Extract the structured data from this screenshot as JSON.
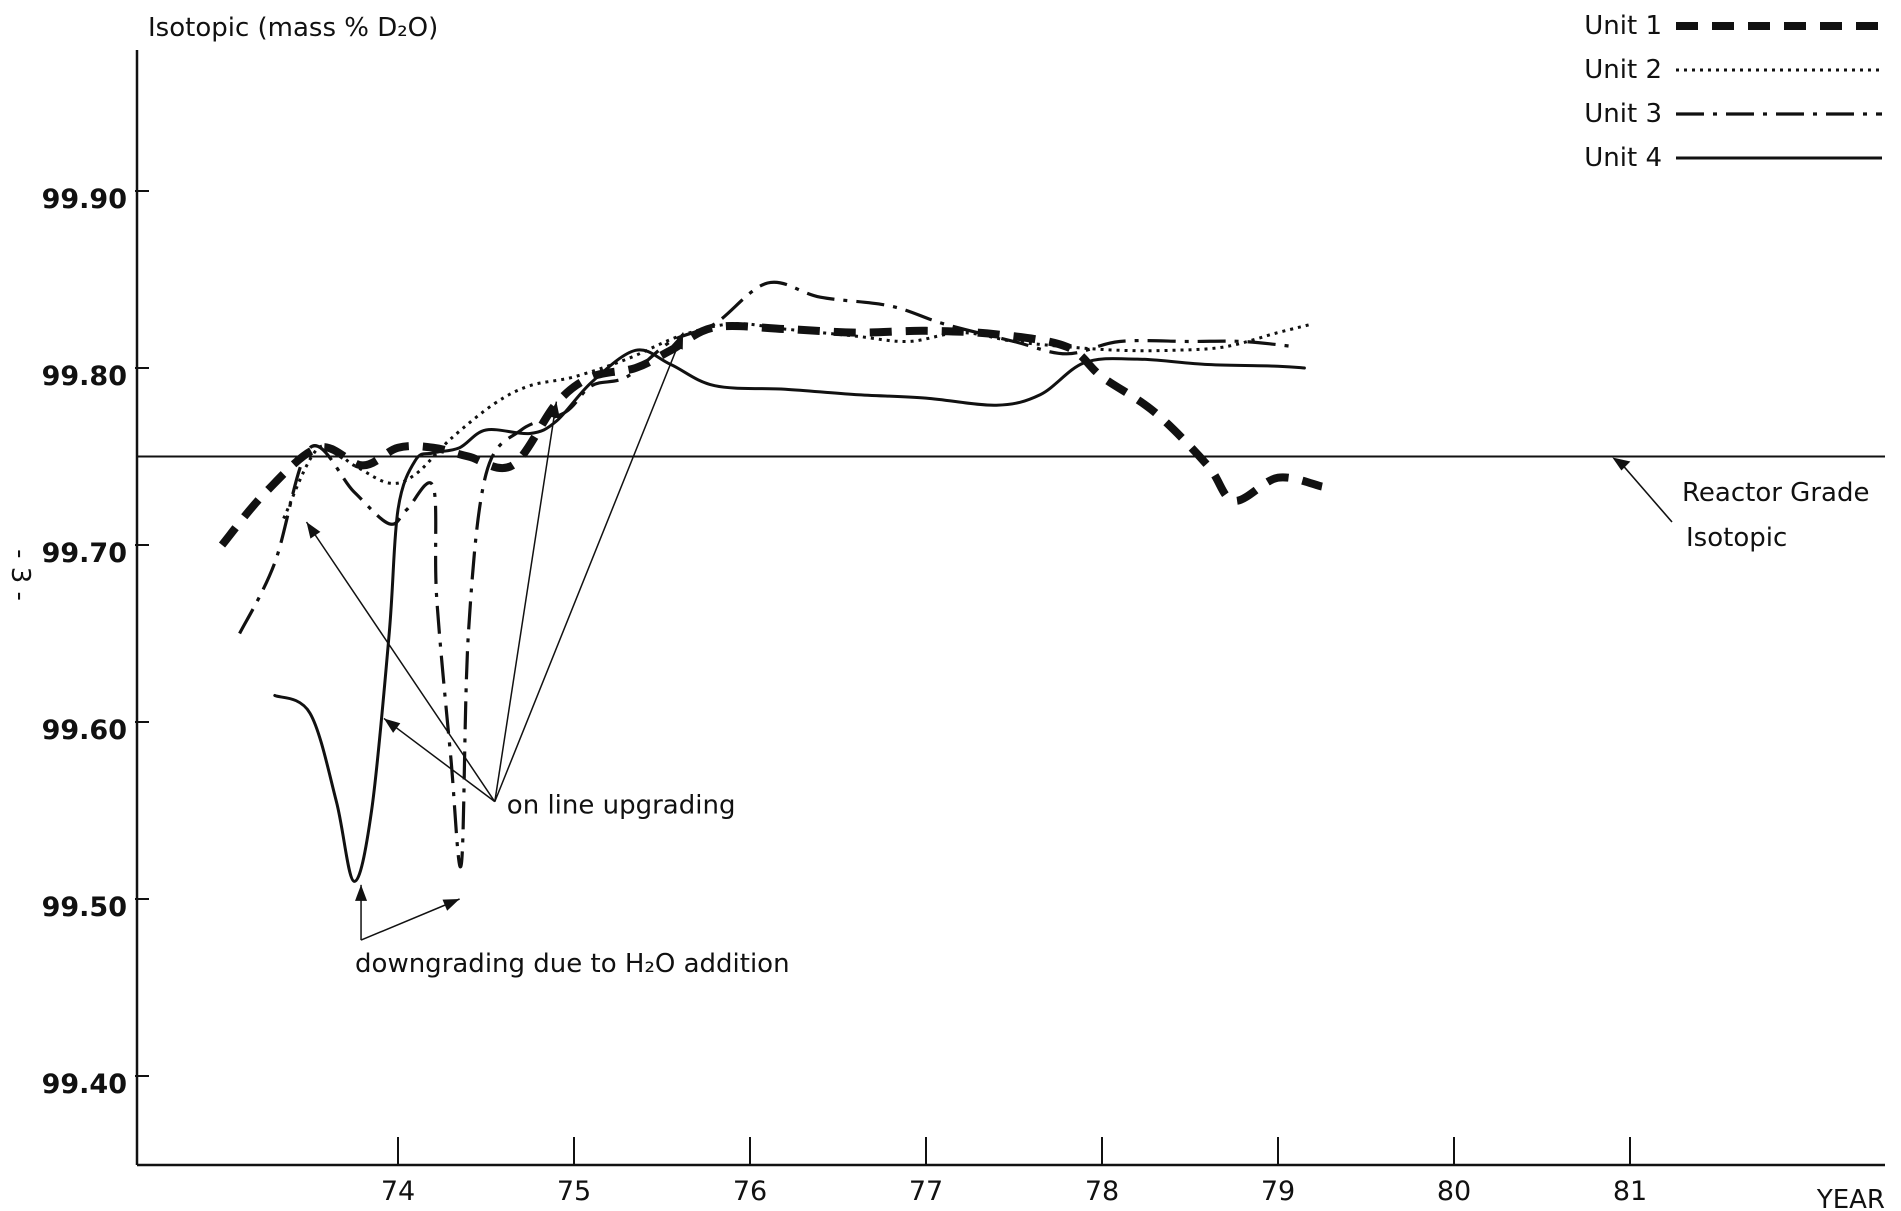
{
  "chart_data": {
    "type": "line",
    "title": "Isotopic (mass % D₂O)",
    "xlabel": "YEAR",
    "ylabel": "",
    "xlim": [
      72.7,
      82.5
    ],
    "ylim": [
      99.35,
      99.98
    ],
    "x_ticks": [
      74,
      75,
      76,
      77,
      78,
      79,
      80,
      81
    ],
    "y_ticks": [
      99.4,
      99.5,
      99.6,
      99.7,
      99.8,
      99.9
    ],
    "y_tick_labels": [
      "99.40",
      "99.50",
      "99.60",
      "99.70",
      "99.80",
      "99.90"
    ],
    "legend_position": "top-right",
    "reference_line": {
      "y": 99.75,
      "label_lines": [
        "Reactor Grade",
        "Isotopic"
      ]
    },
    "side_mark": "- 3 -",
    "series": [
      {
        "name": "Unit 1",
        "style": "heavy-dash",
        "x": [
          73.0,
          73.25,
          73.55,
          73.8,
          74.0,
          74.2,
          74.4,
          74.65,
          74.9,
          75.1,
          75.35,
          75.55,
          75.8,
          76.2,
          76.6,
          77.0,
          77.4,
          77.8,
          78.0,
          78.3,
          78.6,
          78.75,
          79.0,
          79.25
        ],
        "y": [
          99.7,
          99.73,
          99.755,
          99.745,
          99.755,
          99.755,
          99.75,
          99.745,
          99.78,
          99.795,
          99.8,
          99.81,
          99.823,
          99.822,
          99.82,
          99.821,
          99.819,
          99.812,
          99.795,
          99.775,
          99.745,
          99.725,
          99.738,
          99.733
        ]
      },
      {
        "name": "Unit 2",
        "style": "dotted",
        "x": [
          73.35,
          73.55,
          73.75,
          73.95,
          74.1,
          74.3,
          74.55,
          74.75,
          75.0,
          75.3,
          75.6,
          75.9,
          76.2,
          76.6,
          76.9,
          77.2,
          77.5,
          77.8,
          78.1,
          78.4,
          78.7,
          79.0,
          79.2
        ],
        "y": [
          99.715,
          99.755,
          99.745,
          99.735,
          99.74,
          99.76,
          99.78,
          99.79,
          99.795,
          99.805,
          99.818,
          99.825,
          99.822,
          99.818,
          99.815,
          99.82,
          99.815,
          99.812,
          99.81,
          99.81,
          99.812,
          99.82,
          99.825
        ]
      },
      {
        "name": "Unit 3",
        "style": "dash-dot",
        "x": [
          73.1,
          73.3,
          73.5,
          73.75,
          73.95,
          74.05,
          74.2,
          74.22,
          74.3,
          74.36,
          74.4,
          74.5,
          74.7,
          74.95,
          75.1,
          75.3,
          75.55,
          75.8,
          76.1,
          76.4,
          76.8,
          77.1,
          77.5,
          77.8,
          78.1,
          78.5,
          78.8,
          79.1
        ],
        "y": [
          99.65,
          99.69,
          99.755,
          99.73,
          99.712,
          99.72,
          99.733,
          99.67,
          99.58,
          99.52,
          99.65,
          99.74,
          99.765,
          99.775,
          99.79,
          99.795,
          99.815,
          99.825,
          99.848,
          99.84,
          99.835,
          99.825,
          99.815,
          99.808,
          99.815,
          99.815,
          99.815,
          99.812
        ]
      },
      {
        "name": "Unit 4",
        "style": "solid",
        "x": [
          73.3,
          73.5,
          73.65,
          73.75,
          73.85,
          73.95,
          74.0,
          74.1,
          74.2,
          74.35,
          74.5,
          74.75,
          74.9,
          75.1,
          75.35,
          75.55,
          75.8,
          76.2,
          76.6,
          77.0,
          77.4,
          77.65,
          77.9,
          78.2,
          78.6,
          79.0,
          79.15
        ],
        "y": [
          99.615,
          99.605,
          99.555,
          99.51,
          99.55,
          99.65,
          99.72,
          99.748,
          99.752,
          99.755,
          99.765,
          99.763,
          99.77,
          99.792,
          99.81,
          99.802,
          99.79,
          99.788,
          99.785,
          99.783,
          99.779,
          99.785,
          99.803,
          99.805,
          99.802,
          99.801,
          99.8
        ]
      }
    ],
    "annotations": [
      {
        "text": "on line upgrading",
        "anchor": [
          74.55,
          99.555
        ],
        "targets": [
          [
            73.48,
            99.713
          ],
          [
            73.92,
            99.602
          ],
          [
            74.9,
            99.781
          ],
          [
            75.62,
            99.82
          ]
        ]
      },
      {
        "text": "downgrading due to H₂O addition",
        "anchor": [
          73.79,
          99.47
        ],
        "targets": [
          [
            73.79,
            99.508
          ],
          [
            74.35,
            99.5
          ]
        ]
      }
    ],
    "colors": {
      "ink": "#111111",
      "background": "#ffffff"
    }
  }
}
